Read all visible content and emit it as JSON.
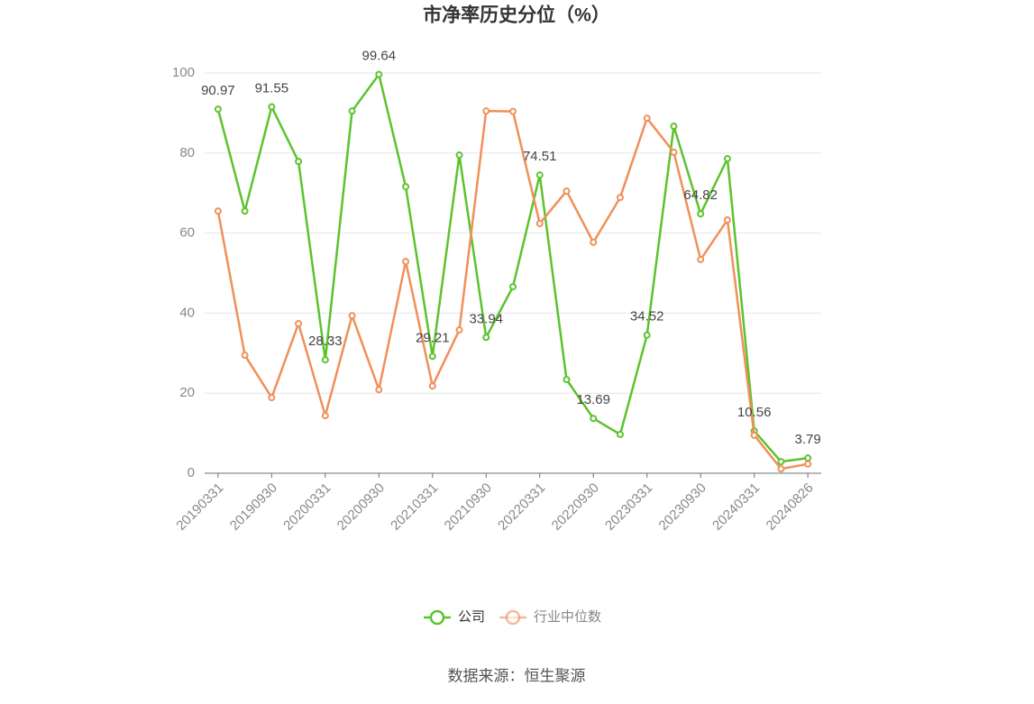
{
  "chart_data": {
    "type": "line",
    "title": "市净率历史分位（%）",
    "source": "数据来源：恒生聚源",
    "categories": [
      "20190331",
      null,
      "20190930",
      null,
      "20200331",
      null,
      "20200930",
      null,
      "20210331",
      null,
      "20210930",
      null,
      "20220331",
      null,
      "20220930",
      null,
      "20230331",
      null,
      "20230930",
      null,
      "20240331",
      null,
      "20240826"
    ],
    "series": [
      {
        "name": "公司",
        "color": "#5cc32d",
        "values": [
          90.97,
          65.5,
          91.55,
          77.9,
          28.33,
          90.5,
          99.64,
          71.6,
          29.21,
          79.5,
          33.94,
          46.6,
          74.51,
          23.4,
          13.69,
          9.7,
          34.52,
          86.7,
          64.82,
          78.6,
          10.56,
          2.9,
          3.79
        ],
        "value_labels": [
          "90.97",
          null,
          "91.55",
          null,
          "28.33",
          null,
          "99.64",
          null,
          "29.21",
          null,
          "33.94",
          null,
          "74.51",
          null,
          "13.69",
          null,
          "34.52",
          null,
          "64.82",
          null,
          "10.56",
          null,
          "3.79"
        ]
      },
      {
        "name": "行业中位数",
        "color": "#f0905a",
        "values": [
          65.5,
          29.5,
          18.9,
          37.4,
          14.4,
          39.4,
          20.9,
          52.9,
          21.8,
          35.8,
          90.5,
          90.4,
          62.4,
          70.5,
          57.7,
          68.9,
          88.7,
          80.2,
          53.4,
          63.3,
          9.5,
          1.1,
          2.3
        ]
      }
    ],
    "ylim": [
      0,
      100
    ],
    "yticks": [
      0,
      20,
      40,
      60,
      80,
      100
    ],
    "grid": true,
    "legend": "bottom"
  }
}
